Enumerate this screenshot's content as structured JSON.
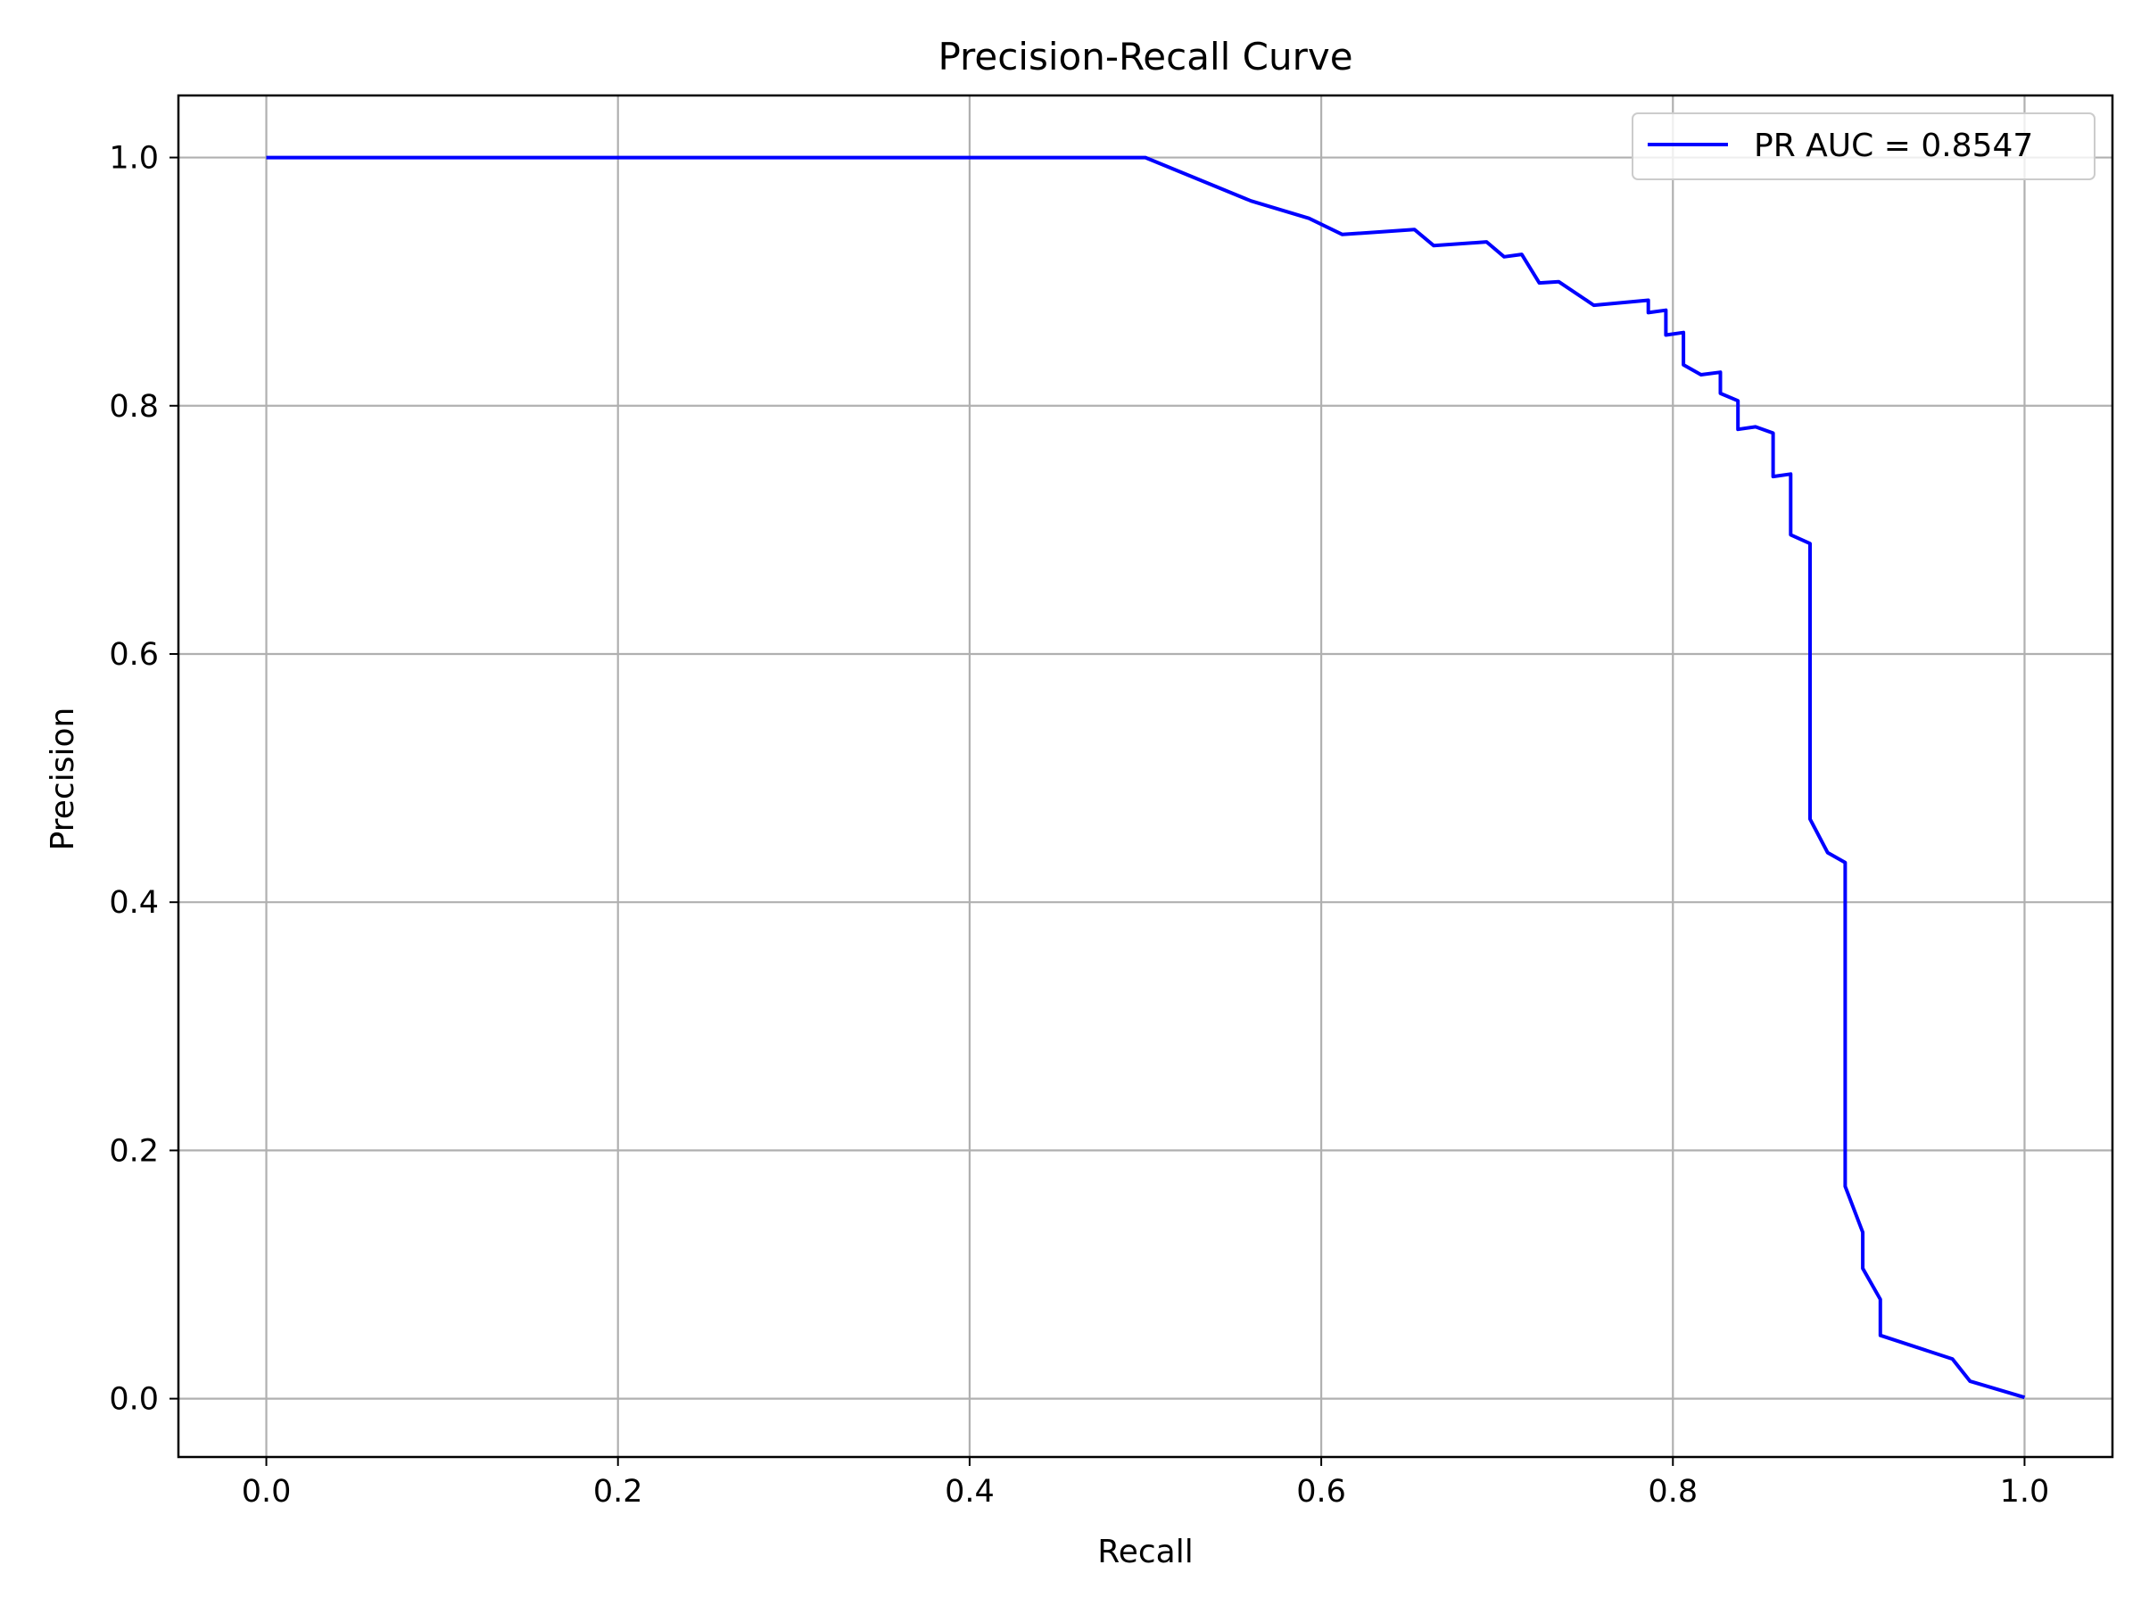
{
  "chart_data": {
    "type": "line",
    "title": "Precision-Recall Curve",
    "xlabel": "Recall",
    "ylabel": "Precision",
    "xlim": [
      -0.05,
      1.05
    ],
    "ylim": [
      -0.047,
      1.05
    ],
    "xticks": [
      0.0,
      0.2,
      0.4,
      0.6,
      0.8,
      1.0
    ],
    "xtick_labels": [
      "0.0",
      "0.2",
      "0.4",
      "0.6",
      "0.8",
      "1.0"
    ],
    "yticks": [
      0.0,
      0.2,
      0.4,
      0.6,
      0.8,
      1.0
    ],
    "ytick_labels": [
      "0.0",
      "0.2",
      "0.4",
      "0.6",
      "0.8",
      "1.0"
    ],
    "grid": true,
    "legend_position": "top-right",
    "series": [
      {
        "name": "PR AUC = 0.8547",
        "color": "#0000ff",
        "x": [
          0.0,
          0.5,
          0.56,
          0.593,
          0.612,
          0.653,
          0.664,
          0.694,
          0.704,
          0.714,
          0.724,
          0.735,
          0.755,
          0.786,
          0.786,
          0.796,
          0.796,
          0.806,
          0.806,
          0.816,
          0.827,
          0.827,
          0.837,
          0.837,
          0.847,
          0.857,
          0.857,
          0.867,
          0.867,
          0.878,
          0.878,
          0.888,
          0.898,
          0.898,
          0.908,
          0.908,
          0.918,
          0.918,
          0.959,
          0.969,
          1.0
        ],
        "y": [
          1.0,
          1.0,
          0.965,
          0.951,
          0.938,
          0.942,
          0.929,
          0.932,
          0.92,
          0.922,
          0.899,
          0.9,
          0.881,
          0.885,
          0.875,
          0.877,
          0.857,
          0.859,
          0.833,
          0.825,
          0.827,
          0.81,
          0.804,
          0.781,
          0.783,
          0.778,
          0.743,
          0.745,
          0.696,
          0.689,
          0.467,
          0.44,
          0.432,
          0.171,
          0.134,
          0.105,
          0.08,
          0.051,
          0.032,
          0.014,
          0.001
        ]
      }
    ]
  }
}
